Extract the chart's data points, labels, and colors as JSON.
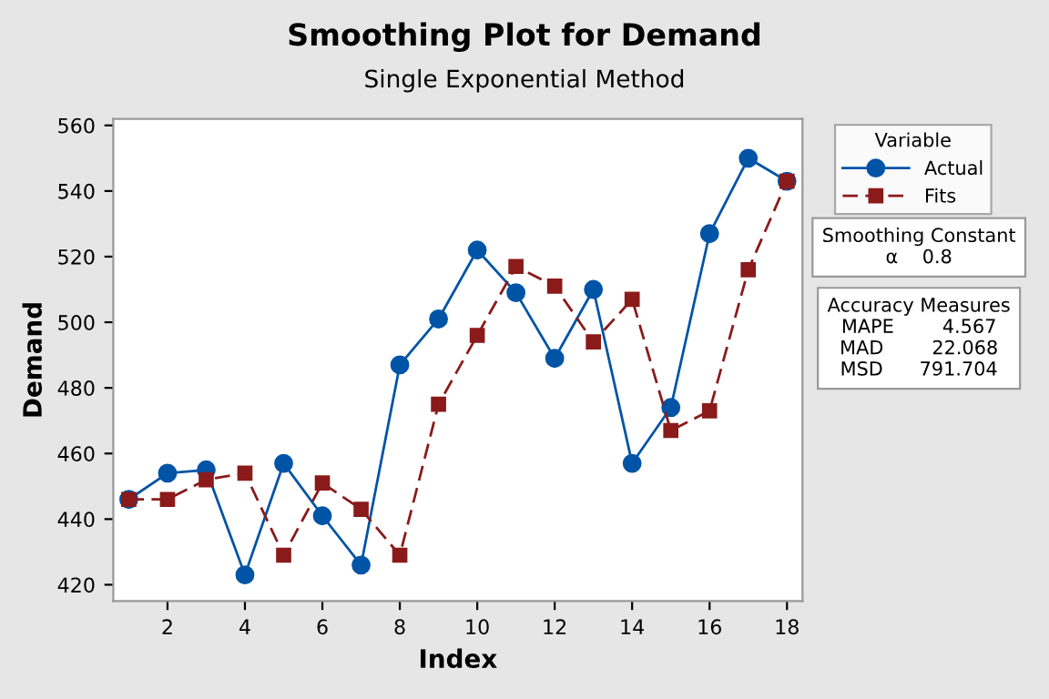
{
  "chart_data": {
    "type": "line",
    "title": "Smoothing Plot for Demand",
    "subtitle": "Single Exponential Method",
    "xlabel": "Index",
    "ylabel": "Demand",
    "legend_title": "Variable",
    "x": [
      1,
      2,
      3,
      4,
      5,
      6,
      7,
      8,
      9,
      10,
      11,
      12,
      13,
      14,
      15,
      16,
      17,
      18
    ],
    "series": [
      {
        "name": "Actual",
        "color": "#0054a6",
        "marker": "circle",
        "line_style": "solid",
        "values": [
          446,
          454,
          455,
          423,
          457,
          441,
          426,
          487,
          501,
          522,
          509,
          489,
          510,
          457,
          474,
          527,
          550,
          543
        ]
      },
      {
        "name": "Fits",
        "color": "#8b1a1a",
        "marker": "square",
        "line_style": "dashed",
        "values": [
          446,
          446,
          452,
          454,
          429,
          451,
          443,
          429,
          475,
          496,
          517,
          511,
          494,
          507,
          467,
          473,
          516,
          543
        ]
      }
    ],
    "xlim": [
      0.6,
      18.4
    ],
    "xticks": [
      2,
      4,
      6,
      8,
      10,
      12,
      14,
      16,
      18
    ],
    "ylim": [
      415,
      562
    ],
    "yticks": [
      420,
      440,
      460,
      480,
      500,
      520,
      540,
      560
    ],
    "grid": false,
    "legend": "right",
    "annotations": [
      "Smoothing Constant\nα    0.8",
      "Accuracy Measures\nMAPE        4.567\nMAD        22.068\nMSD      791.704"
    ]
  }
}
